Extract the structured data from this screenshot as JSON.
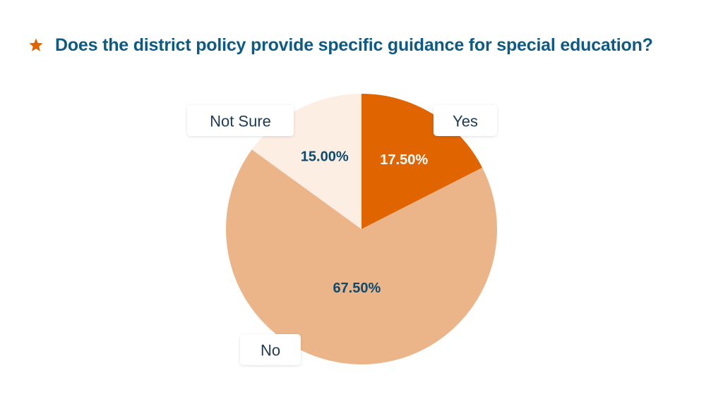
{
  "chart_data": {
    "type": "pie",
    "title": "Does the district policy provide specific guidance for special education?",
    "slices": [
      {
        "label": "Yes",
        "value": 17.5,
        "value_label": "17.50%",
        "color": "#e06400",
        "text_color": "#ffffff"
      },
      {
        "label": "No",
        "value": 67.5,
        "value_label": "67.50%",
        "color": "#ecb589",
        "text_color": "#0e4a6e"
      },
      {
        "label": "Not Sure",
        "value": 15.0,
        "value_label": "15.00%",
        "color": "#fdeee3",
        "text_color": "#0e4a6e"
      }
    ],
    "legend": "labels beside slices in callout boxes"
  },
  "colors": {
    "title": "#0e5a82",
    "star": "#e06400"
  },
  "icons": {
    "title_marker": "star-icon"
  }
}
